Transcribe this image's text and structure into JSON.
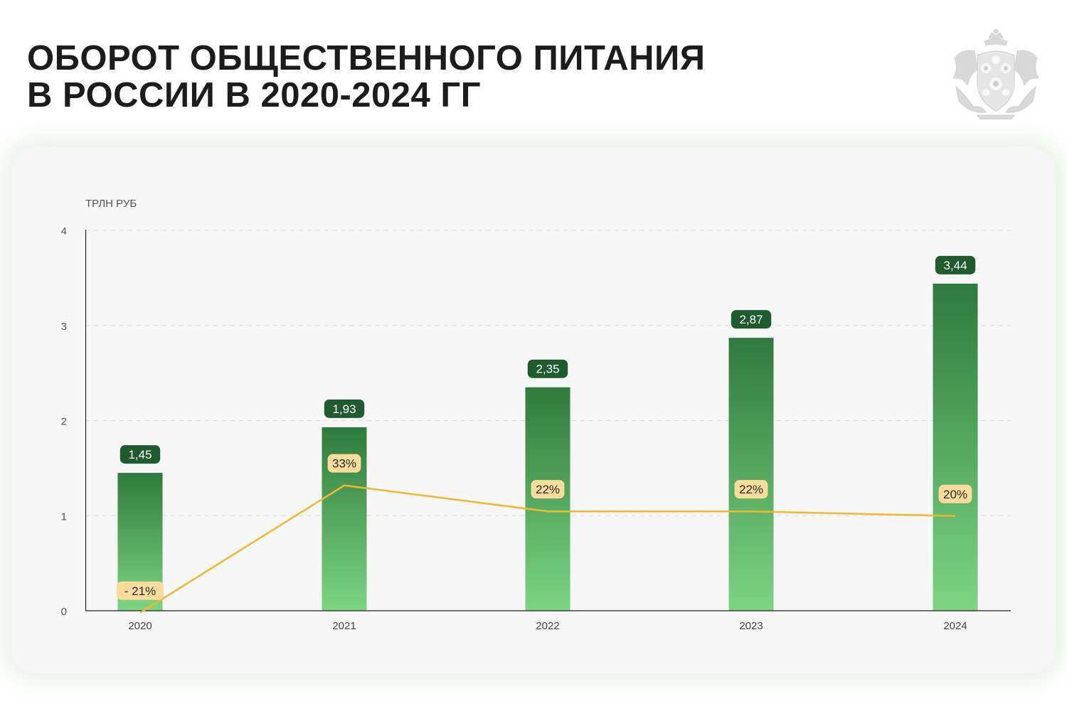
{
  "title": {
    "line1": "ОБОРОТ ОБЩЕСТВЕННОГО ПИТАНИЯ",
    "line2": "В РОССИИ В 2020-2024 ГГ"
  },
  "emblem": {
    "icon": "coat-of-arms-icon",
    "color": "#d6d6d6"
  },
  "colors": {
    "bar_top": "#2f7a3d",
    "bar_bottom": "#7dd582",
    "value_label_bg": "#1f5b2e",
    "line": "#f2b731",
    "pct_label_bg": "#fadb9c",
    "axis": "#222222",
    "grid": "#dcdcdc"
  },
  "chart_data": {
    "type": "bar",
    "ylabel": "ТРЛН РУБ",
    "ylim": [
      0,
      4
    ],
    "yticks": [
      "0",
      "1",
      "2",
      "3",
      "4"
    ],
    "grid": true,
    "categories": [
      "2020",
      "2021",
      "2022",
      "2023",
      "2024"
    ],
    "values": [
      1.45,
      1.93,
      2.35,
      2.87,
      3.44
    ],
    "value_labels": [
      "1,45",
      "1,93",
      "2,35",
      "2,87",
      "3,44"
    ],
    "growth": {
      "type": "line",
      "labels": [
        "- 21%",
        "33%",
        "22%",
        "22%",
        "20%"
      ],
      "values": [
        -21,
        33,
        22,
        22,
        20
      ]
    }
  }
}
